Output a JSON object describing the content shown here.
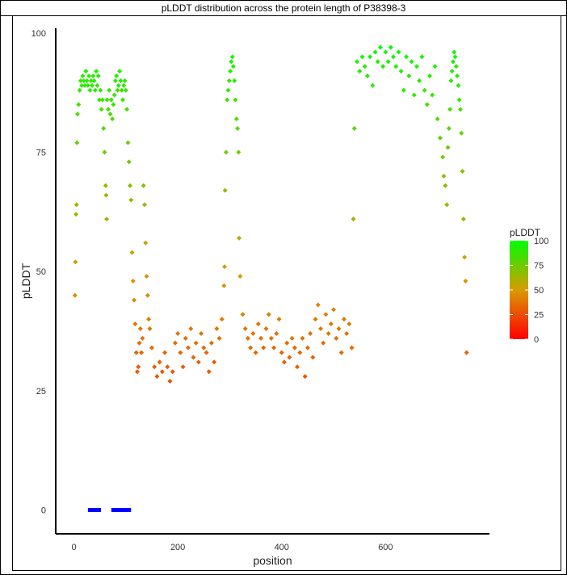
{
  "title": "pLDDT distribution across the protein length of P38398-3",
  "chart_data": {
    "type": "scatter",
    "title": "pLDDT distribution across the protein length of P38398-3",
    "xlabel": "position",
    "ylabel": "pLDDT",
    "xlim": [
      -35,
      800
    ],
    "ylim": [
      -5,
      101
    ],
    "x_ticks": [
      0,
      200,
      400,
      600
    ],
    "y_ticks": [
      0,
      25,
      50,
      75,
      100
    ],
    "grid": false,
    "legend": {
      "title": "pLDDT",
      "position": "right",
      "ticks": [
        100,
        75,
        50,
        25,
        0
      ]
    },
    "color_scale": {
      "low": "#ff0000",
      "mid": "#d89a00",
      "high": "#00ff00"
    },
    "series": [
      {
        "type": "scatter",
        "points": [
          [
            2,
            45
          ],
          [
            3,
            52
          ],
          [
            4,
            62
          ],
          [
            5,
            64
          ],
          [
            6,
            77
          ],
          [
            7,
            83
          ],
          [
            9,
            85
          ],
          [
            11,
            88
          ],
          [
            13,
            90
          ],
          [
            15,
            89
          ],
          [
            17,
            91
          ],
          [
            19,
            90
          ],
          [
            21,
            89
          ],
          [
            23,
            92
          ],
          [
            25,
            90
          ],
          [
            27,
            89
          ],
          [
            29,
            91
          ],
          [
            31,
            88
          ],
          [
            33,
            90
          ],
          [
            35,
            89
          ],
          [
            37,
            91
          ],
          [
            39,
            90
          ],
          [
            41,
            88
          ],
          [
            43,
            92
          ],
          [
            45,
            89
          ],
          [
            47,
            91
          ],
          [
            49,
            86
          ],
          [
            51,
            88
          ],
          [
            53,
            84
          ],
          [
            55,
            86
          ],
          [
            57,
            80
          ],
          [
            59,
            75
          ],
          [
            61,
            68
          ],
          [
            62,
            66
          ],
          [
            63,
            61
          ],
          [
            64,
            86
          ],
          [
            66,
            84
          ],
          [
            68,
            88
          ],
          [
            70,
            83
          ],
          [
            72,
            86
          ],
          [
            74,
            82
          ],
          [
            76,
            85
          ],
          [
            78,
            87
          ],
          [
            80,
            90
          ],
          [
            82,
            91
          ],
          [
            84,
            88
          ],
          [
            86,
            89
          ],
          [
            88,
            92
          ],
          [
            90,
            90
          ],
          [
            92,
            88
          ],
          [
            94,
            86
          ],
          [
            96,
            89
          ],
          [
            98,
            90
          ],
          [
            100,
            88
          ],
          [
            102,
            84
          ],
          [
            104,
            77
          ],
          [
            106,
            73
          ],
          [
            108,
            68
          ],
          [
            110,
            65
          ],
          [
            112,
            54
          ],
          [
            114,
            48
          ],
          [
            116,
            44
          ],
          [
            118,
            39
          ],
          [
            120,
            33
          ],
          [
            122,
            29
          ],
          [
            124,
            30
          ],
          [
            126,
            35
          ],
          [
            128,
            38
          ],
          [
            130,
            33
          ],
          [
            132,
            36
          ],
          [
            134,
            68
          ],
          [
            136,
            64
          ],
          [
            138,
            56
          ],
          [
            140,
            49
          ],
          [
            142,
            45
          ],
          [
            144,
            40
          ],
          [
            146,
            38
          ],
          [
            150,
            34
          ],
          [
            155,
            30
          ],
          [
            160,
            28
          ],
          [
            165,
            31
          ],
          [
            170,
            29
          ],
          [
            175,
            33
          ],
          [
            180,
            30
          ],
          [
            185,
            27
          ],
          [
            190,
            29
          ],
          [
            195,
            35
          ],
          [
            200,
            37
          ],
          [
            205,
            33
          ],
          [
            210,
            30
          ],
          [
            215,
            36
          ],
          [
            220,
            34
          ],
          [
            225,
            38
          ],
          [
            230,
            32
          ],
          [
            235,
            35
          ],
          [
            240,
            31
          ],
          [
            245,
            37
          ],
          [
            250,
            34
          ],
          [
            255,
            33
          ],
          [
            260,
            29
          ],
          [
            265,
            35
          ],
          [
            270,
            31
          ],
          [
            275,
            38
          ],
          [
            280,
            36
          ],
          [
            285,
            40
          ],
          [
            289,
            47
          ],
          [
            290,
            51
          ],
          [
            291,
            67
          ],
          [
            293,
            75
          ],
          [
            295,
            86
          ],
          [
            297,
            88
          ],
          [
            299,
            90
          ],
          [
            301,
            92
          ],
          [
            303,
            94
          ],
          [
            305,
            95
          ],
          [
            307,
            93
          ],
          [
            309,
            90
          ],
          [
            311,
            86
          ],
          [
            313,
            82
          ],
          [
            315,
            80
          ],
          [
            317,
            75
          ],
          [
            318,
            57
          ],
          [
            320,
            49
          ],
          [
            325,
            41
          ],
          [
            330,
            38
          ],
          [
            335,
            36
          ],
          [
            340,
            34
          ],
          [
            345,
            37
          ],
          [
            350,
            33
          ],
          [
            355,
            39
          ],
          [
            360,
            36
          ],
          [
            365,
            34
          ],
          [
            370,
            38
          ],
          [
            375,
            41
          ],
          [
            380,
            36
          ],
          [
            385,
            34
          ],
          [
            390,
            37
          ],
          [
            395,
            40
          ],
          [
            400,
            33
          ],
          [
            405,
            31
          ],
          [
            410,
            35
          ],
          [
            415,
            32
          ],
          [
            420,
            36
          ],
          [
            425,
            34
          ],
          [
            430,
            30
          ],
          [
            435,
            33
          ],
          [
            440,
            36
          ],
          [
            445,
            28
          ],
          [
            450,
            34
          ],
          [
            455,
            37
          ],
          [
            460,
            32
          ],
          [
            465,
            40
          ],
          [
            470,
            43
          ],
          [
            475,
            38
          ],
          [
            480,
            35
          ],
          [
            485,
            41
          ],
          [
            490,
            37
          ],
          [
            495,
            39
          ],
          [
            500,
            42
          ],
          [
            505,
            36
          ],
          [
            510,
            38
          ],
          [
            515,
            33
          ],
          [
            520,
            40
          ],
          [
            525,
            37
          ],
          [
            530,
            39
          ],
          [
            535,
            34
          ],
          [
            538,
            61
          ],
          [
            540,
            80
          ],
          [
            545,
            94
          ],
          [
            550,
            92
          ],
          [
            555,
            95
          ],
          [
            560,
            93
          ],
          [
            565,
            91
          ],
          [
            570,
            95
          ],
          [
            575,
            89
          ],
          [
            580,
            96
          ],
          [
            585,
            94
          ],
          [
            590,
            97
          ],
          [
            595,
            93
          ],
          [
            600,
            96
          ],
          [
            605,
            94
          ],
          [
            610,
            97
          ],
          [
            615,
            95
          ],
          [
            620,
            93
          ],
          [
            625,
            96
          ],
          [
            630,
            92
          ],
          [
            635,
            88
          ],
          [
            640,
            95
          ],
          [
            645,
            91
          ],
          [
            650,
            94
          ],
          [
            655,
            87
          ],
          [
            660,
            93
          ],
          [
            665,
            90
          ],
          [
            670,
            95
          ],
          [
            675,
            88
          ],
          [
            680,
            85
          ],
          [
            685,
            91
          ],
          [
            690,
            87
          ],
          [
            695,
            93
          ],
          [
            700,
            82
          ],
          [
            705,
            78
          ],
          [
            710,
            74
          ],
          [
            712,
            70
          ],
          [
            715,
            68
          ],
          [
            718,
            64
          ],
          [
            720,
            76
          ],
          [
            722,
            80
          ],
          [
            724,
            84
          ],
          [
            726,
            90
          ],
          [
            728,
            92
          ],
          [
            730,
            94
          ],
          [
            732,
            96
          ],
          [
            734,
            95
          ],
          [
            736,
            93
          ],
          [
            738,
            91
          ],
          [
            740,
            89
          ],
          [
            742,
            86
          ],
          [
            744,
            84
          ],
          [
            746,
            79
          ],
          [
            748,
            71
          ],
          [
            750,
            61
          ],
          [
            752,
            53
          ],
          [
            754,
            48
          ],
          [
            756,
            33
          ]
        ]
      },
      {
        "type": "segments",
        "color": "#0000ff",
        "segments": [
          [
            27,
            52
          ],
          [
            72,
            110
          ]
        ],
        "y": 0
      }
    ]
  }
}
